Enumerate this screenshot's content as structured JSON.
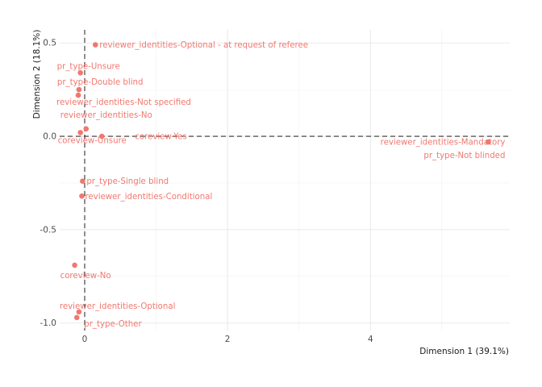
{
  "chart_data": {
    "type": "scatter",
    "xlabel": "Dimension 1 (39.1%)",
    "ylabel": "Dimension 2 (18.1%)",
    "xlim": [
      -0.35,
      5.95
    ],
    "ylim": [
      -1.04,
      0.57
    ],
    "xticks": [
      0,
      2,
      4
    ],
    "xtick_labels": [
      "0",
      "2",
      "4"
    ],
    "xminor": [
      1,
      3,
      5
    ],
    "yticks": [
      0.5,
      0.0,
      -0.5,
      -1.0
    ],
    "ytick_labels": [
      "0.5",
      "0.0",
      "-0.5",
      "-1.0"
    ],
    "yminor": [
      0.25,
      -0.25,
      -0.75
    ],
    "grid": true,
    "reference_lines": {
      "x": 0,
      "y": 0
    },
    "point_color": "#F0786F",
    "points": [
      {
        "label": "reviewer_identities-Optional - at request of referee",
        "x": 0.15,
        "y": 0.49
      },
      {
        "label": "pr_type-Unsure",
        "x": -0.06,
        "y": 0.34
      },
      {
        "label": "pr_type-Double blind",
        "x": -0.08,
        "y": 0.25
      },
      {
        "label": "reviewer_identities-Not specified",
        "x": -0.09,
        "y": 0.22
      },
      {
        "label": "reviewer_identities-No",
        "x": 0.02,
        "y": 0.04
      },
      {
        "label": "coreview-Yes",
        "x": 0.24,
        "y": 0.0
      },
      {
        "label": "coreview-Unsure",
        "x": -0.06,
        "y": 0.02
      },
      {
        "label": "reviewer_identities-Mandatory",
        "x": 5.65,
        "y": -0.03
      },
      {
        "label": "pr_type-Not blinded",
        "x": 5.65,
        "y": -0.03
      },
      {
        "label": "pr_type-Single blind",
        "x": -0.03,
        "y": -0.24
      },
      {
        "label": "reviewer_identities-Conditional",
        "x": -0.04,
        "y": -0.32
      },
      {
        "label": "coreview-No",
        "x": -0.14,
        "y": -0.69
      },
      {
        "label": "reviewer_identities-Optional",
        "x": -0.08,
        "y": -0.94
      },
      {
        "label": "pr_type-Other",
        "x": -0.11,
        "y": -0.97
      }
    ]
  }
}
